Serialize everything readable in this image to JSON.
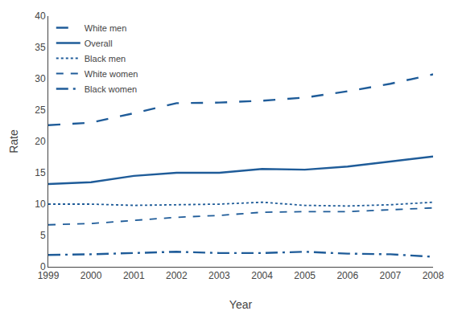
{
  "chart_data": {
    "type": "line",
    "xlabel": "Year",
    "ylabel": "Rate",
    "x": [
      1999,
      2000,
      2001,
      2002,
      2003,
      2004,
      2005,
      2006,
      2007,
      2008
    ],
    "color": "#1f5c99",
    "series": [
      {
        "name": "White men",
        "line_style": "longdash",
        "values": [
          22.6,
          23.0,
          24.5,
          26.1,
          26.2,
          26.5,
          27.0,
          28.0,
          29.2,
          30.7
        ]
      },
      {
        "name": "Overall",
        "line_style": "solid",
        "values": [
          13.2,
          13.5,
          14.5,
          15.0,
          15.0,
          15.6,
          15.5,
          16.0,
          16.8,
          17.6
        ]
      },
      {
        "name": "Black men",
        "line_style": "dot",
        "values": [
          10.0,
          10.0,
          9.8,
          9.9,
          10.0,
          10.3,
          9.8,
          9.7,
          9.9,
          10.3
        ]
      },
      {
        "name": "White women",
        "line_style": "dash",
        "values": [
          6.7,
          6.9,
          7.4,
          7.9,
          8.2,
          8.7,
          8.8,
          8.8,
          9.1,
          9.4
        ]
      },
      {
        "name": "Black women",
        "line_style": "longdashdot",
        "values": [
          1.9,
          2.0,
          2.2,
          2.4,
          2.2,
          2.2,
          2.4,
          2.1,
          2.0,
          1.6
        ]
      }
    ],
    "xlim": [
      1999,
      2008
    ],
    "xticks": [
      1999,
      2000,
      2001,
      2002,
      2003,
      2004,
      2005,
      2006,
      2007,
      2008
    ],
    "ylim": [
      0,
      40
    ],
    "yticks": [
      0,
      5,
      10,
      15,
      20,
      25,
      30,
      35,
      40
    ],
    "grid": false,
    "legend": "upper left"
  }
}
